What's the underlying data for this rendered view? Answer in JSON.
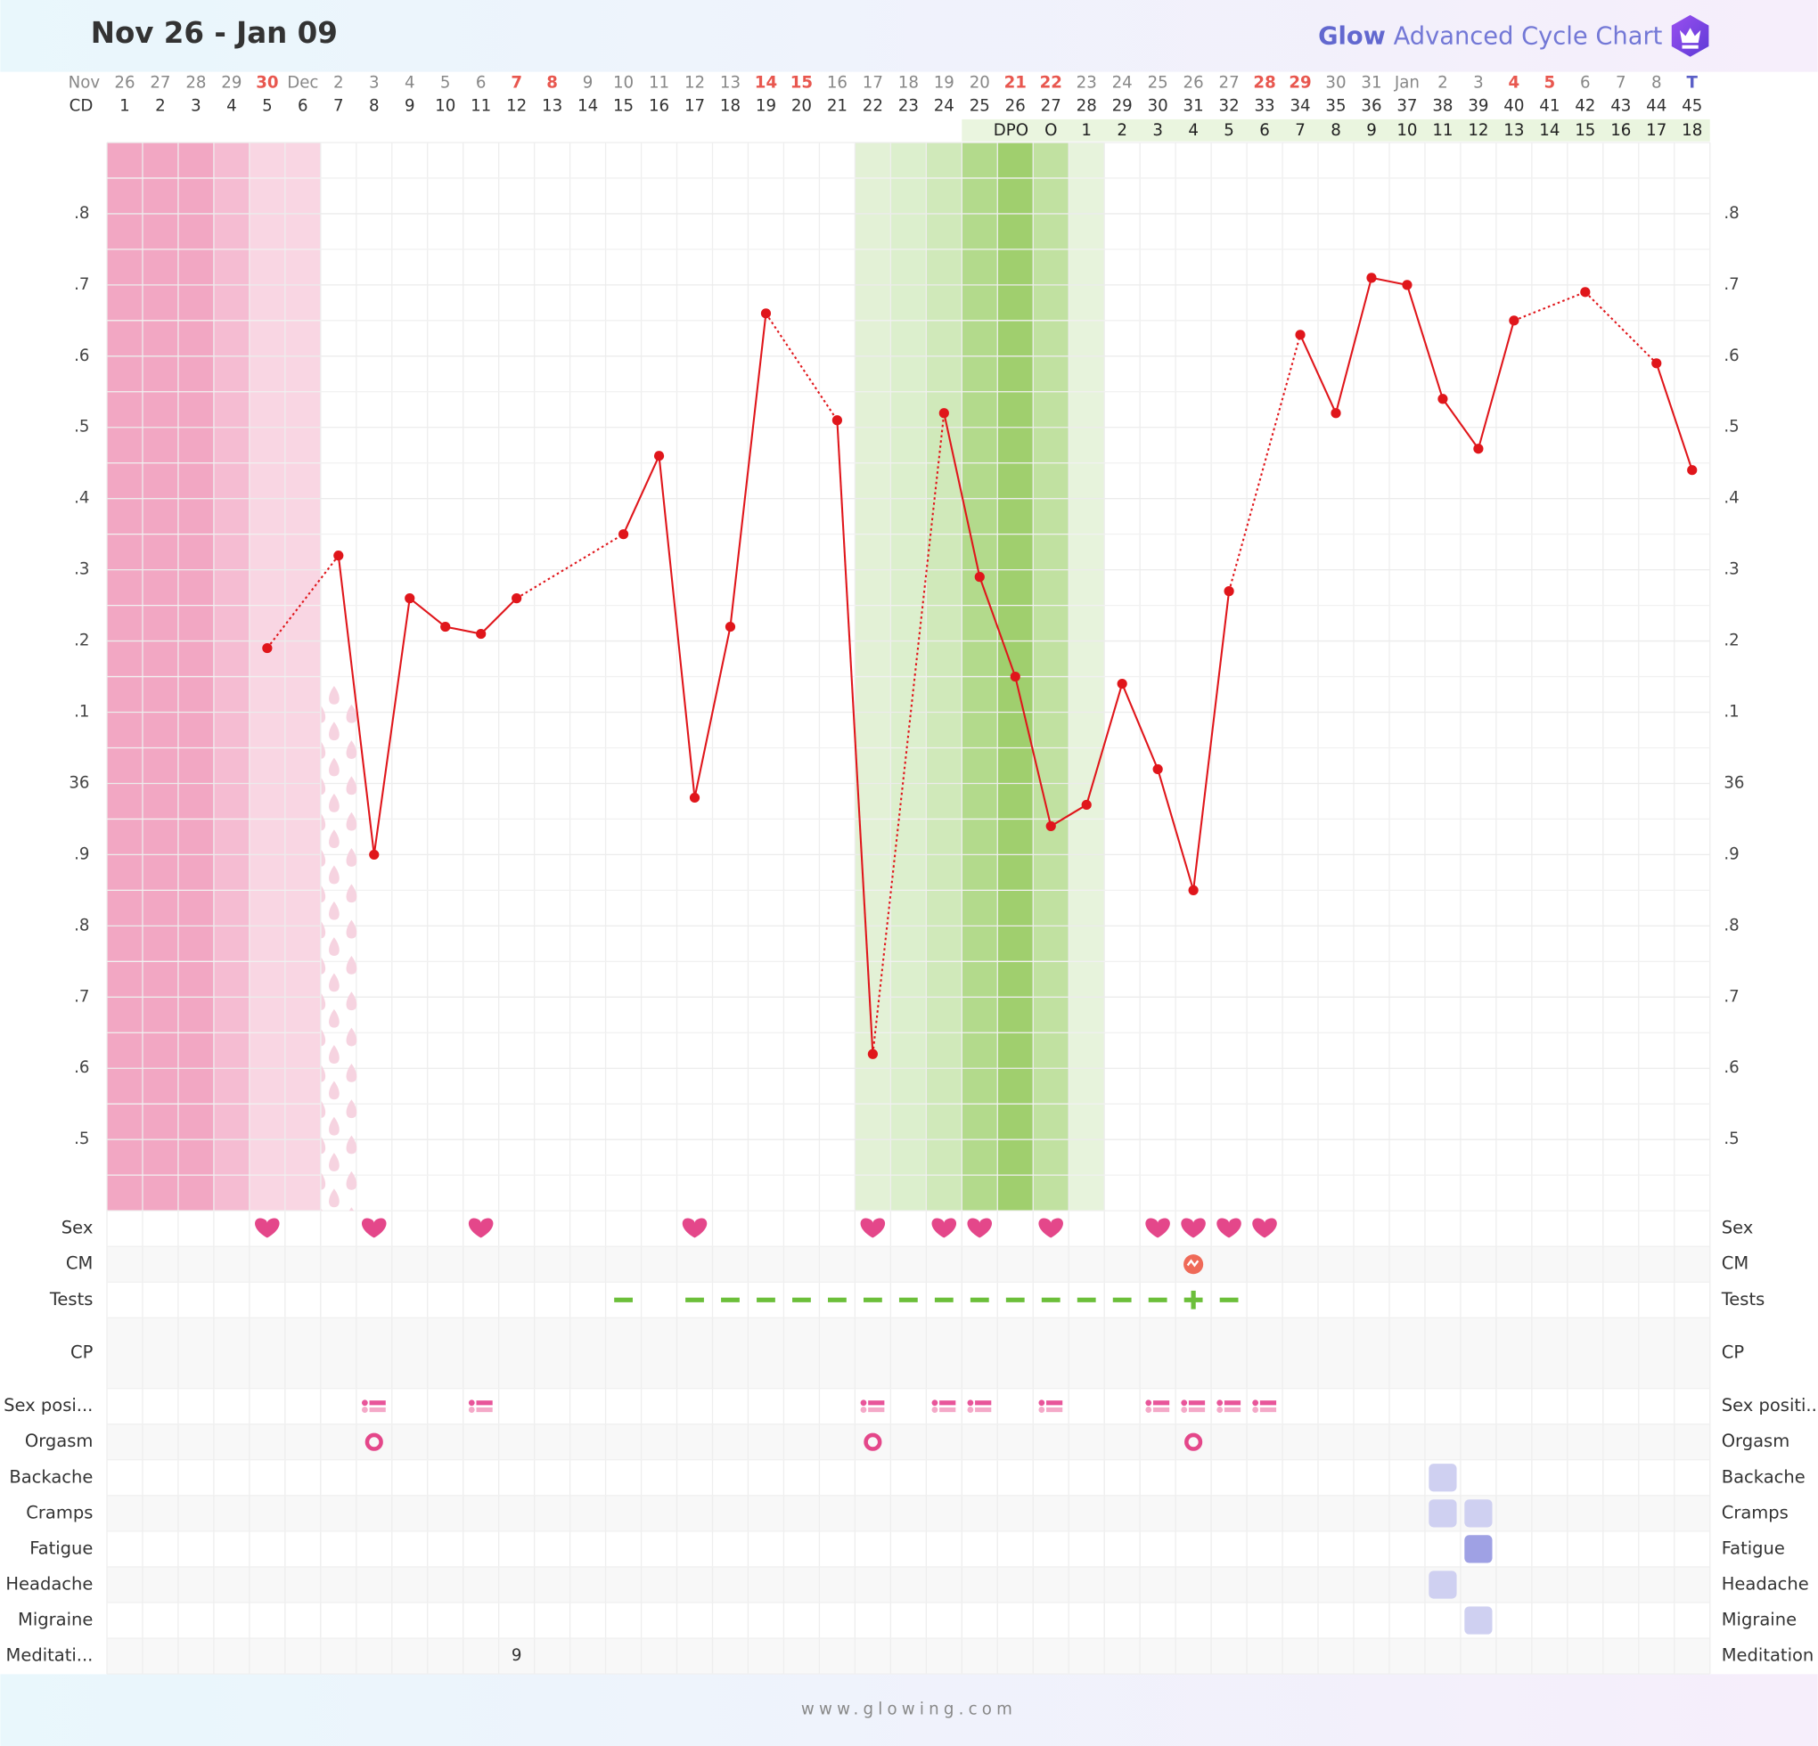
{
  "header": {
    "title": "Nov 26 - Jan 09",
    "brand": "Glow",
    "brand_suffix": "Advanced Cycle Chart"
  },
  "footer": "www.glowing.com",
  "chart_data": {
    "type": "line",
    "month_label": "Nov",
    "cd_label": "CD",
    "dpo_label": "DPO",
    "categories": [
      "26",
      "27",
      "28",
      "29",
      "30",
      "Dec",
      "2",
      "3",
      "4",
      "5",
      "6",
      "7",
      "8",
      "9",
      "10",
      "11",
      "12",
      "13",
      "14",
      "15",
      "16",
      "17",
      "18",
      "19",
      "20",
      "21",
      "22",
      "23",
      "24",
      "25",
      "26",
      "27",
      "28",
      "29",
      "30",
      "31",
      "Jan",
      "2",
      "3",
      "4",
      "5",
      "6",
      "7",
      "8",
      "T"
    ],
    "category_colors": [
      "#888",
      "#888",
      "#888",
      "#888",
      "#e8574f",
      "#888",
      "#888",
      "#888",
      "#888",
      "#888",
      "#888",
      "#e8574f",
      "#e8574f",
      "#888",
      "#888",
      "#888",
      "#888",
      "#888",
      "#e8574f",
      "#e8574f",
      "#888",
      "#888",
      "#888",
      "#888",
      "#888",
      "#e8574f",
      "#e8574f",
      "#888",
      "#888",
      "#888",
      "#888",
      "#888",
      "#e8574f",
      "#e8574f",
      "#888",
      "#888",
      "#888",
      "#888",
      "#888",
      "#e8574f",
      "#e8574f",
      "#888",
      "#888",
      "#888",
      "#5b5fc7"
    ],
    "cd": [
      1,
      2,
      3,
      4,
      5,
      6,
      7,
      8,
      9,
      10,
      11,
      12,
      13,
      14,
      15,
      16,
      17,
      18,
      19,
      20,
      21,
      22,
      23,
      24,
      25,
      26,
      27,
      28,
      29,
      30,
      31,
      32,
      33,
      34,
      35,
      36,
      37,
      38,
      39,
      40,
      41,
      42,
      43,
      44,
      45
    ],
    "dpo": [
      null,
      null,
      null,
      null,
      null,
      null,
      null,
      null,
      null,
      null,
      null,
      null,
      null,
      null,
      null,
      null,
      null,
      null,
      null,
      null,
      null,
      null,
      null,
      null,
      null,
      null,
      "O",
      1,
      2,
      3,
      4,
      5,
      6,
      7,
      8,
      9,
      10,
      11,
      12,
      13,
      14,
      15,
      16,
      17,
      18
    ],
    "values": [
      null,
      null,
      null,
      null,
      36.19,
      null,
      36.32,
      35.9,
      36.26,
      36.22,
      36.21,
      36.26,
      null,
      null,
      36.35,
      36.46,
      35.98,
      36.22,
      36.66,
      null,
      36.51,
      35.62,
      null,
      36.52,
      36.29,
      36.15,
      35.94,
      35.97,
      36.14,
      36.02,
      35.85,
      36.27,
      null,
      36.63,
      36.52,
      36.71,
      36.7,
      36.54,
      36.47,
      36.65,
      null,
      36.69,
      null,
      36.59,
      36.44
    ],
    "color": "#e0161b",
    "ylim": [
      35.4,
      36.9
    ],
    "yticks": [
      {
        "value": 36.8,
        "label": ".8"
      },
      {
        "value": 36.7,
        "label": ".7"
      },
      {
        "value": 36.6,
        "label": ".6"
      },
      {
        "value": 36.5,
        "label": ".5"
      },
      {
        "value": 36.4,
        "label": ".4"
      },
      {
        "value": 36.3,
        "label": ".3"
      },
      {
        "value": 36.2,
        "label": ".2"
      },
      {
        "value": 36.1,
        "label": ".1"
      },
      36,
      {
        "value": 35.9,
        "label": ".9"
      },
      {
        "value": 35.8,
        "label": ".8"
      },
      {
        "value": 35.7,
        "label": ".7"
      },
      {
        "value": 35.6,
        "label": ".6"
      },
      {
        "value": 35.5,
        "label": ".5"
      }
    ],
    "grid": true,
    "day_shading": [
      "#f2a7c3",
      "#f2a7c3",
      "#f2a7c3",
      "#f5bcd2",
      "#f9d6e3",
      "#f9d6e3",
      null,
      null,
      null,
      null,
      null,
      null,
      null,
      null,
      null,
      null,
      null,
      null,
      null,
      null,
      null,
      "#e3f1d6",
      "#dcefcd",
      "#d0e9ba",
      "#b3da8c",
      "#a0cf6e",
      "#c1e1a1",
      "#e7f3dc",
      null,
      null,
      null,
      null,
      null,
      null,
      null,
      null,
      null,
      null,
      null,
      null,
      null,
      null,
      null,
      null,
      null
    ],
    "symptom_colors": [
      "#cfd0f1",
      "#9fa1e4"
    ],
    "rows": [
      {
        "label": "Sex",
        "label_right": "Sex",
        "marks": {
          "4": "heart",
          "7": "heart",
          "10": "heart",
          "16": "heart",
          "21": "heart",
          "23": "heart",
          "24": "heart",
          "26": "heart",
          "29": "heart",
          "30": "heart",
          "31": "heart",
          "32": "heart"
        }
      },
      {
        "label": "CM",
        "label_right": "CM",
        "marks": {
          "30": "egg"
        }
      },
      {
        "label": "Tests",
        "label_right": "Tests",
        "marks": {
          "14": "negative",
          "16": "negative",
          "17": "negative",
          "18": "negative",
          "19": "negative",
          "20": "negative",
          "21": "negative",
          "22": "negative",
          "23": "negative",
          "24": "negative",
          "25": "negative",
          "26": "negative",
          "27": "negative",
          "28": "negative",
          "29": "negative",
          "30": "positive",
          "31": "negative"
        }
      },
      {
        "label": "CP",
        "label_right": "CP",
        "marks": {}
      },
      {
        "label": "Sex posi...",
        "label_right": "Sex positi...",
        "marks": {
          "7": "position",
          "10": "position",
          "21": "position",
          "23": "position",
          "24": "position",
          "26": "position",
          "29": "position",
          "30": "position",
          "31": "position",
          "32": "position"
        }
      },
      {
        "label": "Orgasm",
        "label_right": "Orgasm",
        "marks": {
          "7": "orgasm",
          "21": "orgasm",
          "30": "orgasm"
        }
      },
      {
        "label": "Backache",
        "label_right": "Backache",
        "marks": {
          "37": 1
        }
      },
      {
        "label": "Cramps",
        "label_right": "Cramps",
        "marks": {
          "37": 1,
          "38": 1
        }
      },
      {
        "label": "Fatigue",
        "label_right": "Fatigue",
        "marks": {
          "38": 2
        }
      },
      {
        "label": "Headache",
        "label_right": "Headache",
        "marks": {
          "37": 1
        }
      },
      {
        "label": "Migraine",
        "label_right": "Migraine",
        "marks": {
          "38": 1
        }
      },
      {
        "label": "Meditati...",
        "label_right": "Meditation",
        "marks": {
          "11": 9
        }
      }
    ]
  }
}
